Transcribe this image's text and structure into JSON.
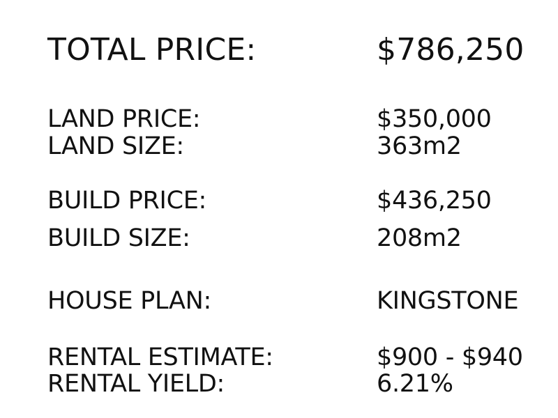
{
  "summary": {
    "total": {
      "label": "TOTAL PRICE:",
      "value": "$786,250"
    },
    "land_price": {
      "label": "LAND PRICE:",
      "value": "$350,000"
    },
    "land_size": {
      "label": "LAND SIZE:",
      "value": "363m2"
    },
    "build_price": {
      "label": "BUILD PRICE:",
      "value": "$436,250"
    },
    "build_size": {
      "label": "BUILD SIZE:",
      "value": "208m2"
    },
    "house_plan": {
      "label": "HOUSE PLAN:",
      "value": "KINGSTONE"
    },
    "rental_estimate": {
      "label": "RENTAL ESTIMATE:",
      "value": "$900 - $940"
    },
    "rental_yield": {
      "label": "RENTAL YIELD:",
      "value": "6.21%"
    }
  }
}
